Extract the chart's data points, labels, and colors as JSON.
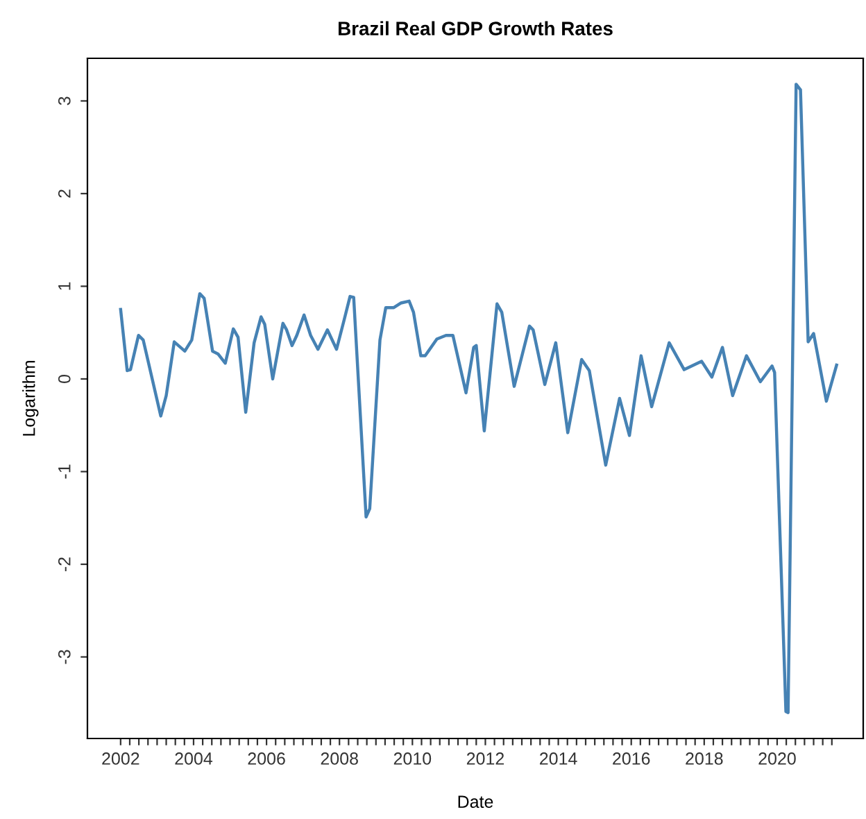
{
  "chart_data": {
    "type": "line",
    "title": "Brazil Real GDP Growth Rates",
    "xlabel": "Date",
    "ylabel": "Logarithm",
    "x": [
      2002.0,
      2002.18,
      2002.27,
      2002.49,
      2002.62,
      2003.1,
      2003.25,
      2003.47,
      2003.76,
      2003.95,
      2004.17,
      2004.29,
      2004.52,
      2004.67,
      2004.87,
      2005.09,
      2005.22,
      2005.43,
      2005.66,
      2005.85,
      2005.95,
      2006.17,
      2006.45,
      2006.55,
      2006.7,
      2006.83,
      2007.03,
      2007.21,
      2007.41,
      2007.67,
      2007.92,
      2008.13,
      2008.29,
      2008.39,
      2008.73,
      2008.83,
      2009.11,
      2009.27,
      2009.49,
      2009.69,
      2009.91,
      2010.03,
      2010.23,
      2010.35,
      2010.67,
      2010.92,
      2011.11,
      2011.47,
      2011.68,
      2011.75,
      2011.97,
      2012.32,
      2012.45,
      2012.79,
      2013.21,
      2013.31,
      2013.63,
      2013.93,
      2014.26,
      2014.64,
      2014.85,
      2015.3,
      2015.68,
      2015.95,
      2016.27,
      2016.56,
      2017.04,
      2017.45,
      2017.93,
      2018.21,
      2018.5,
      2018.78,
      2019.16,
      2019.54,
      2019.86,
      2019.93,
      2020.24,
      2020.3,
      2020.52,
      2020.64,
      2020.85,
      2021.0,
      2021.35,
      2021.63
    ],
    "series": [
      {
        "color": "#4682b4",
        "values": [
          0.75,
          0.09,
          0.1,
          0.47,
          0.42,
          -0.4,
          -0.18,
          0.4,
          0.3,
          0.42,
          0.92,
          0.87,
          0.3,
          0.27,
          0.17,
          0.54,
          0.45,
          -0.36,
          0.39,
          0.67,
          0.59,
          0.0,
          0.6,
          0.53,
          0.36,
          0.47,
          0.69,
          0.47,
          0.32,
          0.53,
          0.32,
          0.64,
          0.89,
          0.88,
          -1.49,
          -1.4,
          0.42,
          0.77,
          0.77,
          0.82,
          0.84,
          0.72,
          0.25,
          0.25,
          0.43,
          0.47,
          0.47,
          -0.15,
          0.34,
          0.36,
          -0.56,
          0.81,
          0.72,
          -0.08,
          0.57,
          0.53,
          -0.06,
          0.39,
          -0.58,
          0.21,
          0.09,
          -0.93,
          -0.21,
          -0.61,
          0.25,
          -0.3,
          0.39,
          0.1,
          0.19,
          0.02,
          0.34,
          -0.18,
          0.25,
          -0.03,
          0.14,
          0.07,
          -3.59,
          -3.6,
          3.18,
          3.12,
          0.4,
          0.49,
          -0.24,
          0.15
        ]
      }
    ],
    "xlim": [
      2001.09,
      2022.36
    ],
    "ylim": [
      -3.88,
      3.46
    ],
    "yticks": [
      -3,
      -2,
      -1,
      0,
      1,
      2,
      3
    ],
    "xticks": [
      2002,
      {
        "value": 2002.25,
        "label": null
      },
      {
        "value": 2002.5,
        "label": null
      },
      {
        "value": 2002.75,
        "label": null
      },
      {
        "value": 2003,
        "label": null
      },
      {
        "value": 2003.25,
        "label": null
      },
      {
        "value": 2003.5,
        "label": null
      },
      {
        "value": 2003.75,
        "label": null
      },
      2004,
      {
        "value": 2004.25,
        "label": null
      },
      {
        "value": 2004.5,
        "label": null
      },
      {
        "value": 2004.75,
        "label": null
      },
      {
        "value": 2005,
        "label": null
      },
      {
        "value": 2005.25,
        "label": null
      },
      {
        "value": 2005.5,
        "label": null
      },
      {
        "value": 2005.75,
        "label": null
      },
      2006,
      {
        "value": 2006.25,
        "label": null
      },
      {
        "value": 2006.5,
        "label": null
      },
      {
        "value": 2006.75,
        "label": null
      },
      {
        "value": 2007,
        "label": null
      },
      {
        "value": 2007.25,
        "label": null
      },
      {
        "value": 2007.5,
        "label": null
      },
      {
        "value": 2007.75,
        "label": null
      },
      2008,
      {
        "value": 2008.25,
        "label": null
      },
      {
        "value": 2008.5,
        "label": null
      },
      {
        "value": 2008.75,
        "label": null
      },
      {
        "value": 2009,
        "label": null
      },
      {
        "value": 2009.25,
        "label": null
      },
      {
        "value": 2009.5,
        "label": null
      },
      {
        "value": 2009.75,
        "label": null
      },
      2010,
      {
        "value": 2010.25,
        "label": null
      },
      {
        "value": 2010.5,
        "label": null
      },
      {
        "value": 2010.75,
        "label": null
      },
      {
        "value": 2011,
        "label": null
      },
      {
        "value": 2011.25,
        "label": null
      },
      {
        "value": 2011.5,
        "label": null
      },
      {
        "value": 2011.75,
        "label": null
      },
      2012,
      {
        "value": 2012.25,
        "label": null
      },
      {
        "value": 2012.5,
        "label": null
      },
      {
        "value": 2012.75,
        "label": null
      },
      {
        "value": 2013,
        "label": null
      },
      {
        "value": 2013.25,
        "label": null
      },
      {
        "value": 2013.5,
        "label": null
      },
      {
        "value": 2013.75,
        "label": null
      },
      2014,
      {
        "value": 2014.25,
        "label": null
      },
      {
        "value": 2014.5,
        "label": null
      },
      {
        "value": 2014.75,
        "label": null
      },
      {
        "value": 2015,
        "label": null
      },
      {
        "value": 2015.25,
        "label": null
      },
      {
        "value": 2015.5,
        "label": null
      },
      {
        "value": 2015.75,
        "label": null
      },
      2016,
      {
        "value": 2016.25,
        "label": null
      },
      {
        "value": 2016.5,
        "label": null
      },
      {
        "value": 2016.75,
        "label": null
      },
      {
        "value": 2017,
        "label": null
      },
      {
        "value": 2017.25,
        "label": null
      },
      {
        "value": 2017.5,
        "label": null
      },
      {
        "value": 2017.75,
        "label": null
      },
      2018,
      {
        "value": 2018.25,
        "label": null
      },
      {
        "value": 2018.5,
        "label": null
      },
      {
        "value": 2018.75,
        "label": null
      },
      {
        "value": 2019,
        "label": null
      },
      {
        "value": 2019.25,
        "label": null
      },
      {
        "value": 2019.5,
        "label": null
      },
      {
        "value": 2019.75,
        "label": null
      },
      2020,
      {
        "value": 2020.25,
        "label": null
      },
      {
        "value": 2020.5,
        "label": null
      },
      {
        "value": 2020.75,
        "label": null
      },
      {
        "value": 2021,
        "label": null
      },
      {
        "value": 2021.25,
        "label": null
      },
      {
        "value": 2021.5,
        "label": null
      }
    ],
    "grid": false,
    "marker": "none",
    "line_style": "solid"
  }
}
